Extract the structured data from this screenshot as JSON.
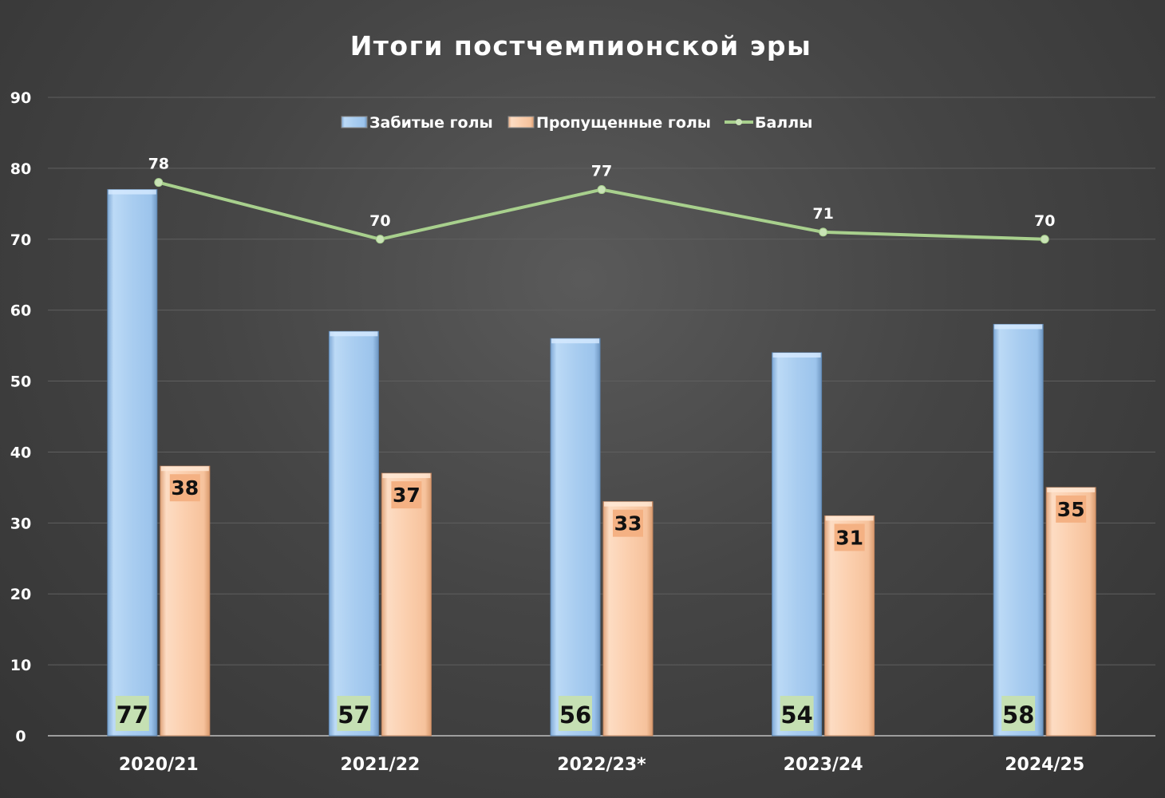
{
  "chart_data": {
    "type": "bar",
    "title": "Итоги постчемпионской эры",
    "categories": [
      "2020/21",
      "2021/22",
      "2022/23*",
      "2023/24",
      "2024/25"
    ],
    "series": [
      {
        "name": "Забитые голы",
        "type": "bar",
        "values": [
          77,
          57,
          56,
          54,
          58
        ],
        "color": "#a9cdf0"
      },
      {
        "name": "Пропущенные голы",
        "type": "bar",
        "values": [
          38,
          37,
          33,
          31,
          35
        ],
        "color": "#f9c9a6"
      },
      {
        "name": "Баллы",
        "type": "line",
        "values": [
          78,
          70,
          77,
          71,
          70
        ],
        "color": "#a8d08d"
      }
    ],
    "ylim": [
      0,
      90
    ],
    "yticks": [
      "0",
      "10",
      "20",
      "30",
      "40",
      "50",
      "60",
      "70",
      "80",
      "90"
    ],
    "grid": true,
    "legend": "top-center",
    "label_colors": {
      "scored_label_bg": "#c5e0b3",
      "conceded_label_bg": "#f4b183"
    }
  }
}
